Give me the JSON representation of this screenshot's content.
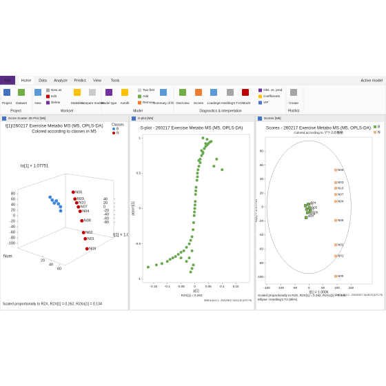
{
  "menu": {
    "tabs": [
      "File",
      "Home",
      "Data",
      "Analyze",
      "Predict",
      "View",
      "Tools"
    ],
    "active_model": "Active model"
  },
  "ribbon": {
    "groups": [
      {
        "label": "Project",
        "buttons": [
          "Project",
          "Dataset"
        ]
      },
      {
        "label": "Workset",
        "buttons": [
          "New",
          "New as",
          "Edit",
          "Delete",
          "Statistics",
          "Compare models"
        ]
      },
      {
        "label": "Model",
        "buttons": [
          "Model type",
          "Autofit",
          "Two first",
          "Add",
          "Remove",
          "Summary of fit"
        ]
      },
      {
        "label": "Diagnostics & interpretation",
        "buttons": [
          "Overview",
          "Scores",
          "Loadings",
          "Hotelling's T2",
          "DModX",
          "Obs. vs. pred.",
          "Coefficients",
          "VIP"
        ]
      },
      {
        "label": "Plot/list",
        "buttons": [
          "Create"
        ]
      }
    ]
  },
  "plot3d": {
    "window_title": "Score Scatter 3D Plot [M5]",
    "title": "t[1]/260217  Exercise Metabo MS (M5, OPLS-DA)",
    "subtitle": "Colored according to classes in M5",
    "legend_title": "Classes",
    "to_label": "to[1] × 1.07751",
    "t_label": "t[1] × 1.0006",
    "num_label": "Num",
    "to_ticks": [
      80,
      60,
      40,
      20,
      0,
      -20,
      -40,
      -60,
      -80,
      -100
    ],
    "t_ticks": [
      40,
      20,
      0,
      -20,
      -40,
      -60,
      -80
    ],
    "num_ticks": [
      20,
      40,
      60
    ],
    "series": [
      {
        "name": "B",
        "color": "#3f86d8",
        "t": [
          -12,
          -8,
          -5,
          -2,
          2,
          5,
          -10
        ],
        "to": [
          2,
          -3,
          -8,
          4,
          -1,
          -6,
          -15
        ],
        "num": [
          1,
          2,
          3,
          4,
          5,
          6,
          7
        ]
      },
      {
        "name": "N",
        "color": "#c00000",
        "labels": [
          "N06",
          "N03",
          "N10",
          "N07",
          "N04",
          "N08",
          "N02",
          "N01",
          "N09"
        ],
        "t": [
          95,
          95,
          95,
          95,
          95,
          95,
          95,
          95,
          95
        ],
        "to": [
          53,
          35,
          27,
          18,
          8,
          -19,
          -54,
          -70,
          -99
        ],
        "num": [
          8,
          9,
          10,
          11,
          12,
          13,
          14,
          15,
          16
        ]
      }
    ],
    "footer": "Scaled proportionally to R2X, R2X[1] = 0.262, R2Xo[1] = 0.134"
  },
  "splot": {
    "window_title": "S-plot [M5]",
    "title": "S-plot - 260217  Exercise Metabo MS (M5, OPLS-DA)",
    "x_label": "p[1]",
    "y_label": "p(corr)[1]",
    "footer": "R2X[1] = 0.262",
    "stamp": "SIMCA 16.0.1 - 2021/03/17 16:11:32 (UTC+9)",
    "xlim": [
      -0.19,
      0.2
    ],
    "ylim": [
      -1.05,
      1.05
    ],
    "xticks": [
      -0.15,
      -0.1,
      -0.05,
      0,
      0.05,
      0.1,
      0.15
    ],
    "yticks": [
      -1,
      -0.5,
      0,
      0.5,
      1
    ],
    "color": "#6aa84f",
    "x": [
      0.005,
      0.008,
      0.01,
      0.012,
      0.015,
      0.02,
      0.025,
      0.03,
      0.035,
      0.04,
      0.045,
      0.05,
      0.055,
      0.06,
      0.02,
      0.03,
      0.04,
      0.015,
      0.01,
      0.025,
      0.07,
      0.1,
      0.08,
      0,
      0.002,
      0.003,
      -0.002,
      -0.004,
      0.001,
      -0.001,
      0.004,
      -0.006,
      -0.01,
      -0.015,
      -0.02,
      -0.03,
      -0.04,
      -0.05,
      -0.06,
      -0.07,
      -0.08,
      -0.09,
      -0.1,
      -0.12,
      -0.14,
      -0.17,
      -0.02,
      -0.01,
      -0.03,
      -0.005,
      -0.01,
      -0.05,
      -0.015,
      0.03,
      0.045
    ],
    "y": [
      0.3,
      0.4,
      0.5,
      0.55,
      0.6,
      0.7,
      0.75,
      0.8,
      0.85,
      0.88,
      0.9,
      0.92,
      0.94,
      0.95,
      0.65,
      0.78,
      0.92,
      0.68,
      0.45,
      0.82,
      0.6,
      0.55,
      0.7,
      0,
      0.1,
      0.2,
      -0.1,
      -0.2,
      0.05,
      -0.05,
      0.25,
      -0.3,
      -0.4,
      -0.45,
      -0.5,
      -0.55,
      -0.6,
      -0.62,
      -0.65,
      -0.68,
      -0.7,
      -0.72,
      -0.75,
      -0.78,
      -0.8,
      -0.83,
      -0.7,
      -0.6,
      -0.75,
      -0.8,
      -0.85,
      -0.7,
      -0.9,
      1,
      0.98
    ]
  },
  "scores": {
    "window_title": "Scores [M5]",
    "title": "Scores - 260217  Exercise Metabo MS (M5, OPLS-DA)",
    "subtitle": "Colored according to マウスの種類",
    "x_label": "t[1] = 1.0006",
    "y_label": "to[1] = 1.07751",
    "footer_lines": [
      "Scaled proportionally to R2X, R2X[1] = 0.262, R2Xo[1] = 0.134,",
      "Ellipse: Hotelling's T2 (95%)"
    ],
    "stamp": "SIMCA 16.0.1 - 2021/03/17 16:08:23 (UTC+9)",
    "xlim": [
      -155,
      225
    ],
    "ylim": [
      -110,
      100
    ],
    "xticks": [
      -150,
      -100,
      -50,
      0,
      50,
      100,
      150
    ],
    "yticks": [
      -100,
      -80,
      -60,
      -40,
      -20,
      0,
      20,
      40,
      60,
      80
    ],
    "ellipse_radii": [
      150,
      95
    ],
    "series": [
      {
        "name": "B",
        "color": "#70ad47",
        "labels": [
          "B01",
          "B02",
          "B03",
          "B04",
          "B05",
          "B06",
          "B07"
        ],
        "x": [
          -12,
          -8,
          -5,
          -2,
          2,
          5,
          -10
        ],
        "y": [
          2,
          -3,
          -8,
          4,
          -1,
          -6,
          -15
        ]
      },
      {
        "name": "N",
        "color": "#f4b183",
        "labels": [
          "N06",
          "N03",
          "N10",
          "N07",
          "N04",
          "N08",
          "N02",
          "N01",
          "N09"
        ],
        "x": [
          95,
          95,
          95,
          95,
          95,
          95,
          95,
          95,
          95
        ],
        "y": [
          53,
          35,
          27,
          18,
          8,
          -19,
          -54,
          -70,
          -99
        ]
      }
    ]
  }
}
